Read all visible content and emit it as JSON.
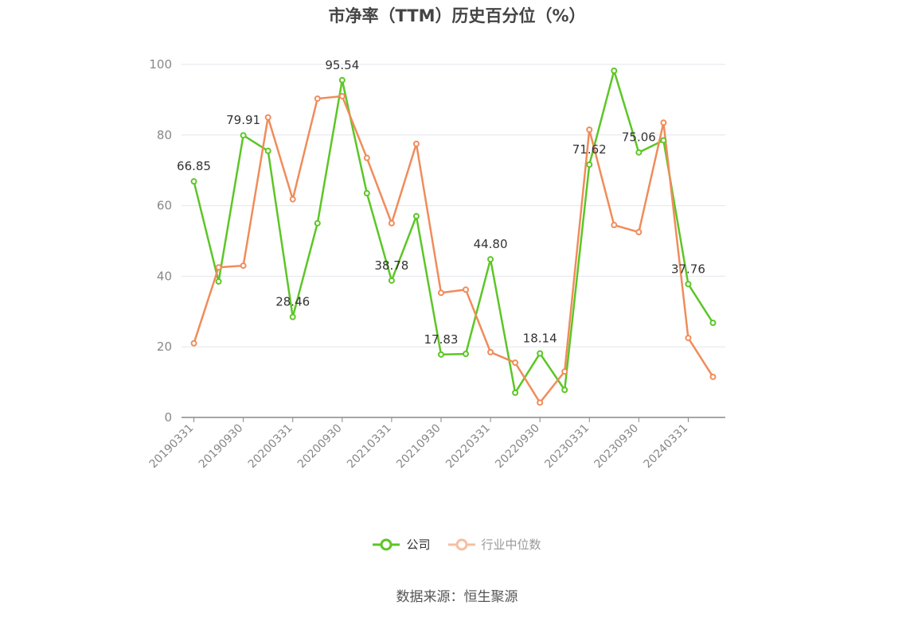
{
  "title": "市净率（TTM）历史百分位（%）",
  "source": "数据来源：恒生聚源",
  "colors": {
    "company": "#5cc626",
    "industry": "#f08c5a",
    "axis": "#888888",
    "grid": "#e3e6ee"
  },
  "legend": [
    {
      "label": "公司",
      "color": "#5cc626",
      "text_color": "#333333"
    },
    {
      "label": "行业中位数",
      "color": "#f5bfa0",
      "text_color": "#999999"
    }
  ],
  "chart_data": {
    "type": "line",
    "title": "市净率（TTM）历史百分位（%）",
    "xlabel": "",
    "ylabel": "",
    "ylim": [
      0,
      100
    ],
    "yticks": [
      0,
      20,
      40,
      60,
      80,
      100
    ],
    "grid": true,
    "legend_position": "bottom",
    "categories": [
      "20190331",
      "20190630",
      "20190930",
      "20191231",
      "20200331",
      "20200630",
      "20200930",
      "20201231",
      "20210331",
      "20210630",
      "20210930",
      "20211231",
      "20220331",
      "20220630",
      "20220930",
      "20221231",
      "20230331",
      "20230630",
      "20230930",
      "20231231",
      "20240331",
      "20240630"
    ],
    "x_tick_labels": [
      "20190331",
      "20190930",
      "20200331",
      "20200930",
      "20210331",
      "20210930",
      "20220331",
      "20220930",
      "20230331",
      "20230930",
      "20240331"
    ],
    "series": [
      {
        "name": "公司",
        "color": "#5cc626",
        "values": [
          66.85,
          38.5,
          79.91,
          75.5,
          28.46,
          55.0,
          95.54,
          63.5,
          38.78,
          57.0,
          17.83,
          18.0,
          44.8,
          7.0,
          18.14,
          7.8,
          71.62,
          98.2,
          75.06,
          78.5,
          37.76,
          26.8
        ]
      },
      {
        "name": "行业中位数",
        "color": "#f08c5a",
        "values": [
          21.0,
          42.5,
          43.0,
          85.0,
          61.8,
          90.3,
          91.0,
          73.5,
          55.0,
          77.5,
          35.3,
          36.2,
          18.5,
          15.5,
          4.2,
          13.0,
          81.5,
          54.5,
          52.5,
          83.5,
          22.5,
          11.5
        ]
      }
    ],
    "data_labels": [
      {
        "index": 0,
        "text": "66.85"
      },
      {
        "index": 2,
        "text": "79.91"
      },
      {
        "index": 4,
        "text": "28.46"
      },
      {
        "index": 6,
        "text": "95.54"
      },
      {
        "index": 8,
        "text": "38.78"
      },
      {
        "index": 10,
        "text": "17.83"
      },
      {
        "index": 12,
        "text": "44.80"
      },
      {
        "index": 14,
        "text": "18.14"
      },
      {
        "index": 16,
        "text": "71.62"
      },
      {
        "index": 18,
        "text": "75.06"
      },
      {
        "index": 20,
        "text": "37.76"
      }
    ]
  }
}
